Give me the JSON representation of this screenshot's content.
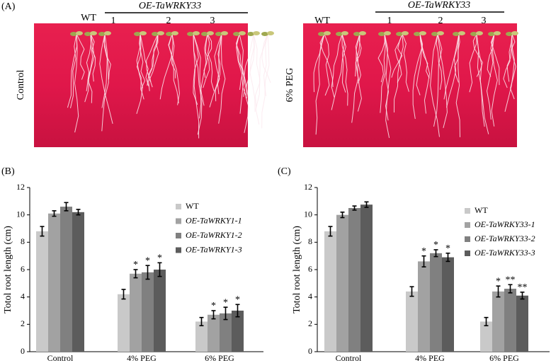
{
  "photos": {
    "panel_label": "(A)",
    "left": {
      "row_label": "Control",
      "wt": "WT",
      "group": "OE-TaWRKY33",
      "lines": [
        "1",
        "2",
        "3"
      ]
    },
    "right": {
      "row_label": "6% PEG",
      "wt": "WT",
      "group": "OE-TaWRKY33",
      "lines": [
        "1",
        "2",
        "3"
      ]
    }
  },
  "chart_data": [
    {
      "type": "bar",
      "panel_label": "(B)",
      "y_label": "Totol root length (cm)",
      "categories": [
        "Control",
        "4% PEG",
        "6% PEG"
      ],
      "ylim": [
        0,
        12
      ],
      "yticks": [
        0,
        2,
        4,
        6,
        8,
        10,
        12
      ],
      "series": [
        {
          "name": "WT",
          "color": "#c9c9c9",
          "values": [
            8.8,
            4.2,
            2.2
          ],
          "errors": [
            0.35,
            0.35,
            0.3
          ],
          "significance": [
            null,
            null,
            null
          ]
        },
        {
          "name": "OE-TaWRKY1-1",
          "color": "#a2a2a2",
          "values": [
            10.1,
            5.7,
            2.7
          ],
          "errors": [
            0.2,
            0.3,
            0.3
          ],
          "significance": [
            null,
            "*",
            "*"
          ]
        },
        {
          "name": "OE-TaWRKY1-2",
          "color": "#808080",
          "values": [
            10.6,
            5.8,
            2.8
          ],
          "errors": [
            0.3,
            0.5,
            0.45
          ],
          "significance": [
            null,
            "*",
            "*"
          ]
        },
        {
          "name": "OE-TaWRKY1-3",
          "color": "#5c5c5c",
          "values": [
            10.2,
            6.0,
            3.0
          ],
          "errors": [
            0.2,
            0.5,
            0.45
          ],
          "significance": [
            null,
            "*",
            "*"
          ]
        }
      ]
    },
    {
      "type": "bar",
      "panel_label": "(C)",
      "y_label": "Totol root length (cm)",
      "categories": [
        "Control",
        "4% PEG",
        "6% PEG"
      ],
      "ylim": [
        0,
        12
      ],
      "yticks": [
        0,
        2,
        4,
        6,
        8,
        10,
        12
      ],
      "series": [
        {
          "name": "WT",
          "color": "#c9c9c9",
          "values": [
            8.8,
            4.4,
            2.2
          ],
          "errors": [
            0.35,
            0.35,
            0.3
          ],
          "significance": [
            null,
            null,
            null
          ]
        },
        {
          "name": "OE-TaWRKY33-1",
          "color": "#a2a2a2",
          "values": [
            10.0,
            6.6,
            4.4
          ],
          "errors": [
            0.2,
            0.4,
            0.4
          ],
          "significance": [
            null,
            "*",
            "*"
          ]
        },
        {
          "name": "OE-TaWRKY33-2",
          "color": "#808080",
          "values": [
            10.5,
            7.2,
            4.6
          ],
          "errors": [
            0.15,
            0.25,
            0.3
          ],
          "significance": [
            null,
            "*",
            "**"
          ]
        },
        {
          "name": "OE-TaWRKY33-3",
          "color": "#5c5c5c",
          "values": [
            10.75,
            6.9,
            4.1
          ],
          "errors": [
            0.2,
            0.3,
            0.25
          ],
          "significance": [
            null,
            "*",
            "**"
          ]
        }
      ]
    }
  ]
}
